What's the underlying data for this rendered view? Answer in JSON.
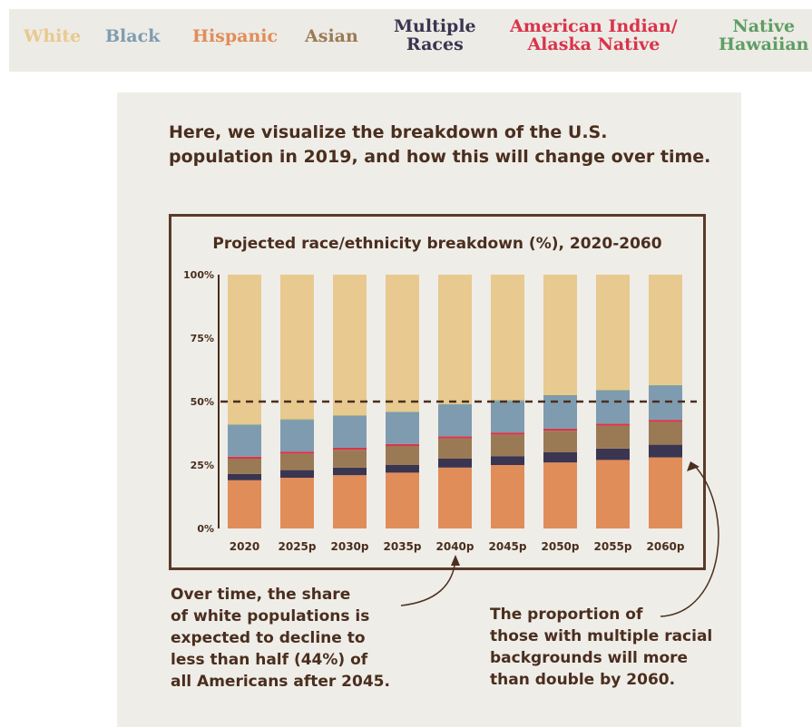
{
  "legend": [
    {
      "label": "White",
      "color": "#e8c98f"
    },
    {
      "label": "Black",
      "color": "#7f9bb0"
    },
    {
      "label": "Hispanic",
      "color": "#e08d5a"
    },
    {
      "label": "Asian",
      "color": "#9a7a55"
    },
    {
      "label": "Multiple\nRaces",
      "color": "#3a3550"
    },
    {
      "label": "American Indian/\nAlaska Native",
      "color": "#d9344a"
    },
    {
      "label": "Native\nHawaiian",
      "color": "#5e9e62"
    }
  ],
  "intro": "Here, we visualize the breakdown of the U.S.\npopulation in 2019, and how this will change over time.",
  "chart_data": {
    "type": "bar",
    "stacked": true,
    "title": "Projected race/ethnicity breakdown (%), 2020-2060",
    "categories": [
      "2020",
      "2025p",
      "2030p",
      "2035p",
      "2040p",
      "2045p",
      "2050p",
      "2055p",
      "2060p"
    ],
    "ylim": [
      0,
      100
    ],
    "yticks": [
      "0%",
      "25%",
      "50%",
      "75%",
      "100%"
    ],
    "reference_line": 50,
    "series": [
      {
        "name": "Hispanic",
        "color": "#e08d5a",
        "values": [
          19,
          20,
          21,
          22,
          24,
          25,
          26,
          27,
          28
        ]
      },
      {
        "name": "Multiple Races",
        "color": "#3a3550",
        "values": [
          2.5,
          3,
          3,
          3,
          3.5,
          3.5,
          4,
          4.5,
          5
        ]
      },
      {
        "name": "Asian",
        "color": "#9a7a55",
        "values": [
          6,
          6.5,
          7,
          7.5,
          8,
          8.5,
          8.5,
          9,
          9
        ]
      },
      {
        "name": "American Indian/Alaska Native",
        "color": "#d9344a",
        "values": [
          0.8,
          0.8,
          0.8,
          0.8,
          0.8,
          0.8,
          0.8,
          0.8,
          0.8
        ]
      },
      {
        "name": "Black",
        "color": "#7f9bb0",
        "values": [
          12.5,
          12.5,
          12.5,
          12.5,
          12.5,
          12.5,
          13,
          13,
          13.5
        ]
      },
      {
        "name": "Native Hawaiian",
        "color": "#5e9e62",
        "values": [
          0.2,
          0.2,
          0.2,
          0.2,
          0.2,
          0.2,
          0.2,
          0.2,
          0.2
        ]
      },
      {
        "name": "White",
        "color": "#e8c98f",
        "values": [
          59,
          57,
          55.5,
          54,
          51,
          49.5,
          47.5,
          45.5,
          43.5
        ]
      }
    ]
  },
  "notes": {
    "left": "Over time, the share\nof white populations is\nexpected to decline to\nless than half (44%) of\nall Americans after 2045.",
    "right": "The proportion of\nthose with multiple racial\nbackgrounds will more\nthan double by 2060."
  },
  "colors": {
    "text": "#4a2e1e",
    "frame": "#5a3a28",
    "panel": "#efede8"
  }
}
